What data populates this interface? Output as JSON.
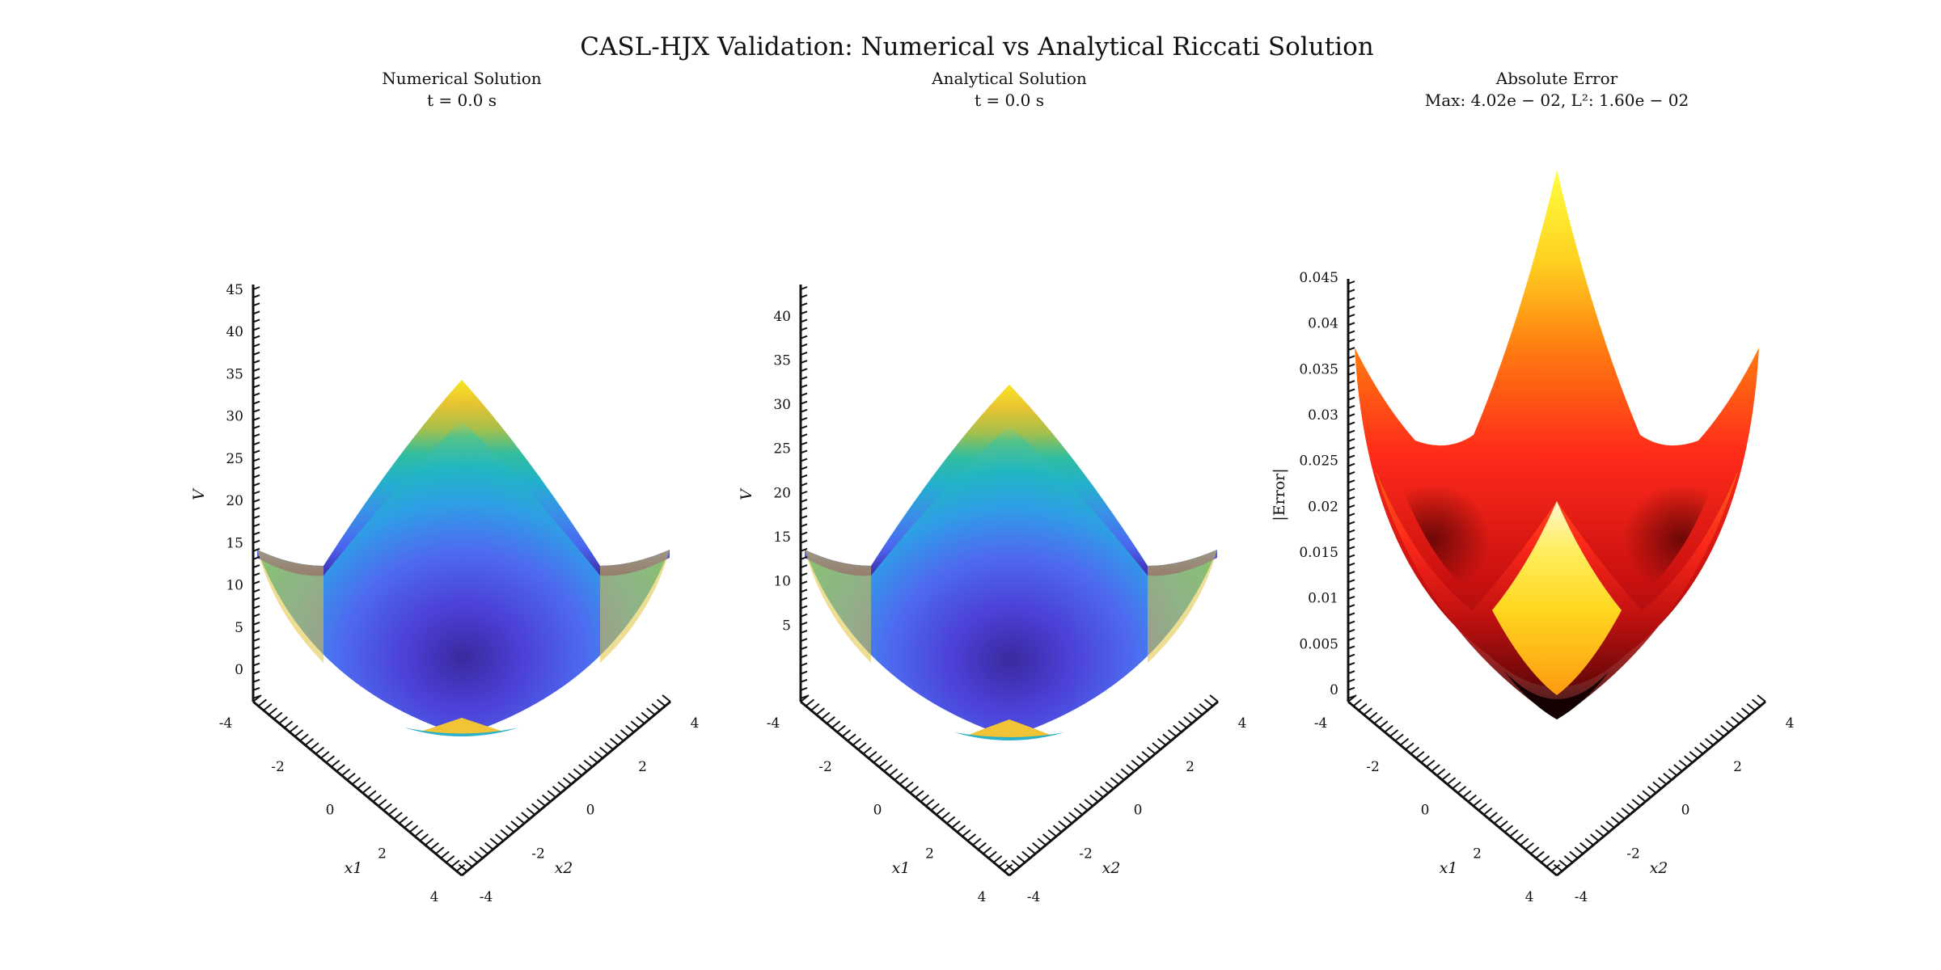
{
  "figure": {
    "title": "CASL-HJX Validation: Numerical vs Analytical Riccati Solution"
  },
  "chart_data": [
    {
      "type": "surface3d",
      "title": "Numerical Solution",
      "subtitle": "t = 0.0 s",
      "xlabel": "x1",
      "ylabel": "x2",
      "zlabel": "V",
      "x_range": [
        -4,
        4
      ],
      "y_range": [
        -4,
        4
      ],
      "z_range": [
        0,
        45
      ],
      "x_ticks": [
        "-4",
        "-2",
        "0",
        "2",
        "4"
      ],
      "y_ticks": [
        "-4",
        "-2",
        "0",
        "2",
        "4"
      ],
      "z_ticks": [
        "0",
        "5",
        "10",
        "15",
        "20",
        "25",
        "30",
        "35",
        "40",
        "45"
      ],
      "surface": "V = x1^2 + x2^2 (quadratic bowl)",
      "colormap": "parula",
      "peak_value": 32
    },
    {
      "type": "surface3d",
      "title": "Analytical Solution",
      "subtitle": "t = 0.0 s",
      "xlabel": "x1",
      "ylabel": "x2",
      "zlabel": "V",
      "x_range": [
        -4,
        4
      ],
      "y_range": [
        -4,
        4
      ],
      "z_range": [
        0,
        43
      ],
      "x_ticks": [
        "-4",
        "-2",
        "0",
        "2",
        "4"
      ],
      "y_ticks": [
        "-4",
        "-2",
        "0",
        "2",
        "4"
      ],
      "z_ticks": [
        "5",
        "10",
        "15",
        "20",
        "25",
        "30",
        "35",
        "40"
      ],
      "surface": "V = x1^2 + x2^2 (quadratic bowl)",
      "colormap": "parula",
      "peak_value": 32
    },
    {
      "type": "surface3d",
      "title": "Absolute Error",
      "subtitle": "Max: 4.02e − 02, L²: 1.60e − 02",
      "xlabel": "x1",
      "ylabel": "x2",
      "zlabel": "|Error|",
      "x_range": [
        -4,
        4
      ],
      "y_range": [
        -4,
        4
      ],
      "z_range": [
        0,
        0.045
      ],
      "x_ticks": [
        "-4",
        "-2",
        "0",
        "2",
        "4"
      ],
      "y_ticks": [
        "-4",
        "-2",
        "0",
        "2",
        "4"
      ],
      "z_ticks": [
        "0",
        "0.005",
        "0.01",
        "0.015",
        "0.02",
        "0.025",
        "0.03",
        "0.035",
        "0.04",
        "0.045"
      ],
      "surface": "|Error| growing quadratically with radius",
      "colormap": "hot",
      "max_error": 0.0402,
      "l2_error": 0.016
    }
  ],
  "colors": {
    "parula_low": "#3e26a8",
    "parula_mid": "#2ab0c8",
    "parula_high": "#f9e524",
    "hot_low": "#3a0000",
    "hot_mid": "#ff2020",
    "hot_high": "#ffff40"
  }
}
